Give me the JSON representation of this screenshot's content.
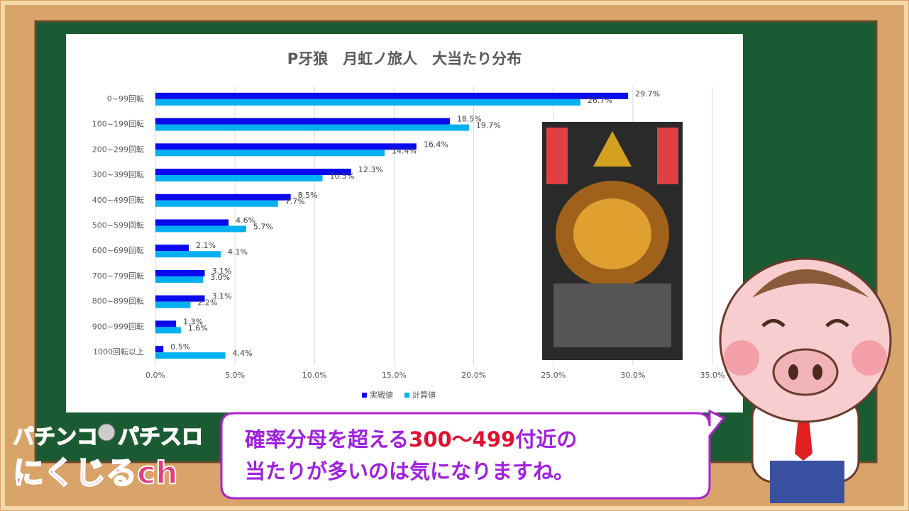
{
  "chart_data": {
    "type": "bar",
    "orientation": "horizontal",
    "title": "P牙狼　月虹ノ旅人　大当たり分布",
    "categories": [
      "0~99回転",
      "100~199回転",
      "200~299回転",
      "300~399回転",
      "400~499回転",
      "500~599回転",
      "600~699回転",
      "700~799回転",
      "800~899回転",
      "900~999回転",
      "1000回転以上"
    ],
    "series": [
      {
        "name": "実戦値",
        "color": "#0a0aee",
        "values": [
          29.7,
          18.5,
          16.4,
          12.3,
          8.5,
          4.6,
          2.1,
          3.1,
          3.1,
          1.3,
          0.5
        ],
        "value_labels": [
          "29.7%",
          "18.5%",
          "16.4%",
          "12.3%",
          "8.5%",
          "4.6%",
          "2.1%",
          "3.1%",
          "3.1%",
          "1.3%",
          "0.5%"
        ]
      },
      {
        "name": "計算値",
        "color": "#00b0f0",
        "values": [
          26.7,
          19.7,
          14.4,
          10.5,
          7.7,
          5.7,
          4.1,
          3.0,
          2.2,
          1.6,
          4.4
        ],
        "value_labels": [
          "26.7%",
          "19.7%",
          "14.4%",
          "10.5%",
          "7.7%",
          "5.7%",
          "4.1%",
          "3.0%",
          "2.2%",
          "1.6%",
          "4.4%"
        ]
      }
    ],
    "xlim": [
      0,
      35
    ],
    "xticks": [
      {
        "value": 0,
        "label": "0.0%"
      },
      {
        "value": 5,
        "label": "5.0%"
      },
      {
        "value": 10,
        "label": "10.0%"
      },
      {
        "value": 15,
        "label": "15.0%"
      },
      {
        "value": 20,
        "label": "20.0%"
      },
      {
        "value": 25,
        "label": "25.0%"
      },
      {
        "value": 30,
        "label": "30.0%"
      },
      {
        "value": 35,
        "label": "35.0%"
      }
    ],
    "grid": true,
    "legend": "bottom"
  },
  "caption": {
    "parts": [
      "確率分母を超える",
      "300〜499",
      "付近の",
      "当たりが多いのは気になりますね。"
    ]
  },
  "logo": {
    "line1a": "パチンコ",
    "line1b": "パチスロ",
    "line2": "にくじるch"
  }
}
